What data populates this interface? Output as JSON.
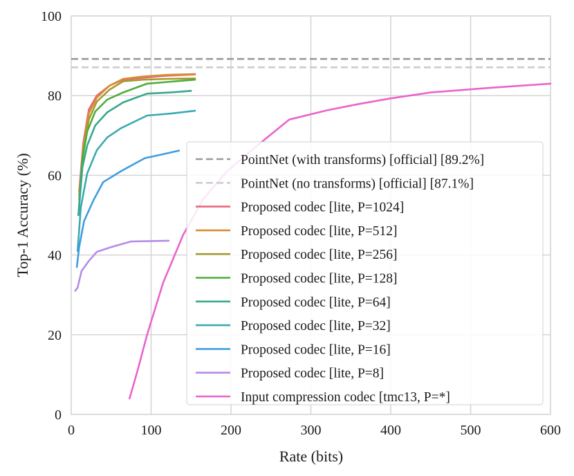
{
  "chart_data": {
    "type": "line",
    "title": "",
    "xlabel": "Rate (bits)",
    "ylabel": "Top-1 Accuracy (%)",
    "xlim": [
      0,
      600
    ],
    "ylim": [
      0,
      100
    ],
    "xticks": [
      0,
      100,
      200,
      300,
      400,
      500,
      600
    ],
    "yticks": [
      0,
      20,
      40,
      60,
      80,
      100
    ],
    "grid": true,
    "legend_position": "lower-right",
    "baselines": [
      {
        "name": "PointNet (with transforms) [official] [89.2%]",
        "value": 89.2,
        "color": "#999999",
        "style": "dashed"
      },
      {
        "name": "PointNet (no transforms) [official] [87.1%]",
        "value": 87.1,
        "color": "#cccccc",
        "style": "dashed"
      }
    ],
    "series": [
      {
        "name": "Proposed codec [lite, P=1024]",
        "color": "#e8677a",
        "x": [
          10,
          15,
          22,
          32,
          48,
          65,
          90,
          120,
          155
        ],
        "y": [
          56,
          68,
          76.5,
          80,
          82.5,
          84,
          84.5,
          85,
          85.3
        ]
      },
      {
        "name": "Proposed codec [lite, P=512]",
        "color": "#d98c34",
        "x": [
          10,
          15,
          22,
          32,
          48,
          65,
          90,
          120,
          155
        ],
        "y": [
          55,
          67,
          75.5,
          79.5,
          82.5,
          84.2,
          84.8,
          85.2,
          85.4
        ]
      },
      {
        "name": "Proposed codec [lite, P=256]",
        "color": "#a39b2e",
        "x": [
          10,
          15,
          22,
          32,
          48,
          65,
          90,
          120,
          155
        ],
        "y": [
          54,
          66,
          74,
          78.5,
          81.5,
          83.6,
          84,
          84.2,
          84.3
        ]
      },
      {
        "name": "Proposed codec [lite, P=128]",
        "color": "#4cad38",
        "x": [
          9,
          14,
          20,
          30,
          45,
          65,
          95,
          125,
          155
        ],
        "y": [
          50,
          64,
          71,
          76,
          79,
          80.8,
          83,
          83.5,
          84
        ]
      },
      {
        "name": "Proposed codec [lite, P=64]",
        "color": "#36a88a",
        "x": [
          9,
          14,
          20,
          30,
          45,
          65,
          95,
          125,
          150
        ],
        "y": [
          50,
          62,
          67.5,
          72.5,
          75.8,
          78.3,
          80.5,
          80.8,
          81.2
        ]
      },
      {
        "name": "Proposed codec [lite, P=32]",
        "color": "#39a9b2",
        "x": [
          8,
          12,
          20,
          32,
          45,
          62,
          95,
          125,
          155
        ],
        "y": [
          41,
          52,
          60.5,
          66.3,
          69.5,
          71.8,
          75,
          75.5,
          76.2
        ]
      },
      {
        "name": "Proposed codec [lite, P=16]",
        "color": "#3d9de0",
        "x": [
          7,
          10,
          16,
          28,
          40,
          62,
          92,
          115,
          135
        ],
        "y": [
          37,
          42,
          48.5,
          53.8,
          58.3,
          61,
          64.3,
          65.3,
          66.2
        ]
      },
      {
        "name": "Proposed codec [lite, P=8]",
        "color": "#b58be8",
        "x": [
          5,
          8,
          13,
          22,
          32,
          50,
          75,
          100,
          122
        ],
        "y": [
          31,
          31.8,
          36,
          38.5,
          40.8,
          42,
          43.4,
          43.5,
          43.6
        ]
      },
      {
        "name": "Input compression codec [tmc13, P=*]",
        "color": "#ea63cc",
        "x": [
          73,
          83,
          95,
          115,
          140,
          165,
          195,
          230,
          273,
          320,
          360,
          400,
          450,
          520,
          600
        ],
        "y": [
          4,
          11,
          20,
          33,
          45,
          54,
          61,
          67,
          74,
          76.3,
          77.9,
          79.3,
          80.8,
          81.9,
          83
        ]
      }
    ]
  }
}
